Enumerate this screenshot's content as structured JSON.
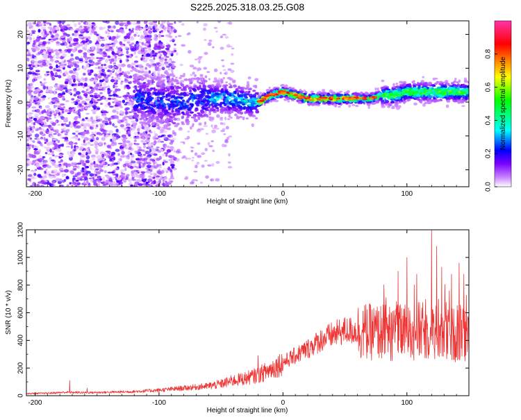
{
  "title": "S225.2025.318.03.25.G08",
  "chart_data": [
    {
      "type": "heatmap",
      "title": "S225.2025.318.03.25.G08",
      "xlabel": "Height of straight line (km)",
      "ylabel": "Frequency (Hz)",
      "xlim": [
        -207,
        150
      ],
      "ylim": [
        -25,
        24
      ],
      "x_ticks": [
        -200,
        -100,
        0,
        100
      ],
      "y_ticks": [
        -20,
        -10,
        0,
        10,
        20
      ],
      "x_tick_labels": [
        "-200",
        "-100",
        "0",
        "100"
      ],
      "y_tick_labels": [
        "-20",
        "-10",
        "0",
        "10",
        "20"
      ],
      "ridge": {
        "x": [
          -120,
          -100,
          -80,
          -60,
          -50,
          -40,
          -30,
          -20,
          -10,
          0,
          10,
          20,
          30,
          40,
          50,
          60,
          70,
          80,
          90,
          100,
          110,
          120,
          130,
          140,
          150
        ],
        "y": [
          1,
          0,
          0,
          1,
          1,
          1,
          0,
          0,
          2,
          3,
          2,
          1,
          1,
          1,
          1,
          1,
          1,
          2,
          2,
          3,
          3,
          3,
          3,
          3,
          3
        ]
      },
      "colorbar": {
        "label": "Normalized spectral amplitude",
        "range": [
          0.0,
          1.0
        ],
        "ticks": [
          0.0,
          0.2,
          0.4,
          0.6,
          0.8
        ],
        "tick_labels": [
          "0.0",
          "0.2",
          "0.4",
          "0.6",
          "0.8"
        ]
      }
    },
    {
      "type": "line",
      "xlabel": "Height of straight line (km)",
      "ylabel": "SNR (10 * v/v)",
      "xlim": [
        -207,
        150
      ],
      "ylim": [
        0,
        1200
      ],
      "x_ticks": [
        -200,
        -100,
        0,
        100
      ],
      "y_ticks": [
        0,
        200,
        400,
        600,
        800,
        1000,
        1200
      ],
      "x_tick_labels": [
        "-200",
        "-100",
        "0",
        "100"
      ],
      "y_tick_labels": [
        "0",
        "200",
        "400",
        "600",
        "800",
        "1000",
        "1200"
      ],
      "series": [
        {
          "name": "SNR",
          "color": "#ee3333",
          "x": [
            -207,
            -190,
            -175,
            -160,
            -140,
            -120,
            -100,
            -80,
            -60,
            -50,
            -40,
            -30,
            -20,
            -10,
            0,
            10,
            20,
            30,
            40,
            50,
            60,
            70,
            80,
            90,
            100,
            110,
            120,
            130,
            140,
            150
          ],
          "values": [
            15,
            18,
            25,
            22,
            25,
            30,
            40,
            55,
            70,
            85,
            110,
            125,
            150,
            190,
            240,
            290,
            340,
            400,
            440,
            470,
            470,
            460,
            460,
            450,
            460,
            470,
            460,
            450,
            440,
            430
          ],
          "spikes": [
            {
              "x": -172,
              "y": 110
            },
            {
              "x": -158,
              "y": 55
            },
            {
              "x": -20,
              "y": 290
            },
            {
              "x": 93,
              "y": 900
            },
            {
              "x": 100,
              "y": 1000
            },
            {
              "x": 108,
              "y": 880
            },
            {
              "x": 120,
              "y": 1200
            },
            {
              "x": 124,
              "y": 1080
            },
            {
              "x": 128,
              "y": 930
            },
            {
              "x": 136,
              "y": 880
            },
            {
              "x": 142,
              "y": 960
            },
            {
              "x": 146,
              "y": 880
            }
          ]
        }
      ]
    }
  ]
}
